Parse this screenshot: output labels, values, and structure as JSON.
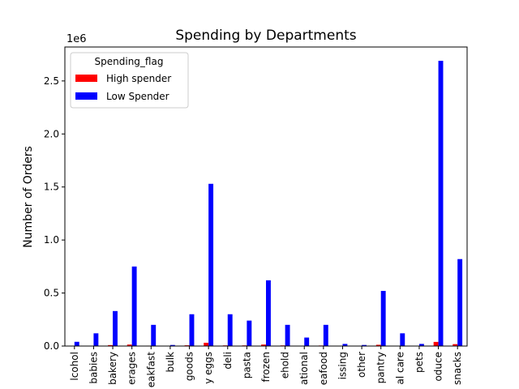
{
  "chart_data": {
    "type": "bar",
    "title": "Spending by Departments",
    "xlabel": "",
    "ylabel": "Number of Orders",
    "y_scale_note": "1e6",
    "ylim": [
      0,
      2.82
    ],
    "y_ticks": [
      "0.0",
      "0.5",
      "1.0",
      "1.5",
      "2.0",
      "2.5"
    ],
    "y_tick_values": [
      0,
      0.5,
      1.0,
      1.5,
      2.0,
      2.5
    ],
    "categories": [
      "lcohol",
      "babies",
      "bakery",
      "erages",
      "eakfast",
      "bulk",
      "goods",
      "y eggs",
      "deli",
      "pasta",
      "frozen",
      "ehold",
      "ational",
      "eafood",
      "issing",
      "other",
      "pantry",
      "al care",
      "pets",
      "oduce",
      "snacks"
    ],
    "legend": {
      "title": "Spending_flag",
      "placement": "top-left"
    },
    "series": [
      {
        "name": "High spender",
        "color": "#ff0000",
        "values": [
          0.002,
          0.003,
          0.009,
          0.014,
          0.004,
          0.001,
          0.007,
          0.031,
          0.006,
          0.006,
          0.014,
          0.006,
          0.002,
          0.005,
          0.001,
          0.001,
          0.012,
          0.003,
          0.001,
          0.039,
          0.018
        ]
      },
      {
        "name": "Low Spender",
        "color": "#0000ff",
        "values": [
          0.04,
          0.12,
          0.33,
          0.75,
          0.2,
          0.01,
          0.3,
          1.53,
          0.3,
          0.24,
          0.62,
          0.2,
          0.08,
          0.2,
          0.02,
          0.01,
          0.52,
          0.12,
          0.02,
          2.69,
          0.82
        ]
      }
    ]
  }
}
